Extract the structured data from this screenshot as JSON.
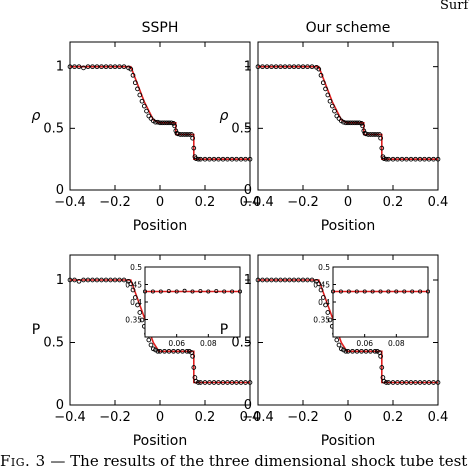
{
  "running_head": "Surf",
  "caption": {
    "label": "Fig. 3",
    "text": "— The results of the three dimensional shock tube test"
  },
  "chart_data": [
    {
      "type": "line",
      "panel": "top-left",
      "title": "SSPH",
      "xlabel": "Position",
      "ylabel": "ρ",
      "xlim": [
        -0.4,
        0.4
      ],
      "ylim": [
        0,
        1.2
      ],
      "xticks": [
        "-0.4",
        "-0.2",
        "0",
        "0.2",
        "0.4"
      ],
      "yticks": [
        "0",
        "0.5",
        "1"
      ],
      "series": [
        {
          "kind": "line",
          "color": "#e02020",
          "x": [
            -0.4,
            -0.13,
            -0.07,
            -0.03,
            -0.005,
            0.07,
            0.07,
            0.15,
            0.15,
            0.4
          ],
          "y": [
            1.0,
            1.0,
            0.715,
            0.57,
            0.545,
            0.545,
            0.45,
            0.45,
            0.25,
            0.25
          ]
        },
        {
          "kind": "markers",
          "color": "#000000",
          "x": [
            -0.4,
            -0.38,
            -0.36,
            -0.34,
            -0.32,
            -0.3,
            -0.28,
            -0.26,
            -0.24,
            -0.22,
            -0.2,
            -0.18,
            -0.16,
            -0.14,
            -0.13,
            -0.12,
            -0.11,
            -0.1,
            -0.09,
            -0.08,
            -0.07,
            -0.06,
            -0.05,
            -0.04,
            -0.03,
            -0.02,
            -0.01,
            0.0,
            0.01,
            0.02,
            0.03,
            0.04,
            0.05,
            0.06,
            0.065,
            0.07,
            0.075,
            0.08,
            0.09,
            0.1,
            0.11,
            0.12,
            0.13,
            0.14,
            0.145,
            0.15,
            0.155,
            0.16,
            0.17,
            0.18,
            0.2,
            0.22,
            0.24,
            0.26,
            0.28,
            0.3,
            0.32,
            0.34,
            0.36,
            0.38,
            0.4
          ],
          "y": [
            1.0,
            1.0,
            1.0,
            0.99,
            1.0,
            1.0,
            1.0,
            1.0,
            1.0,
            1.0,
            1.0,
            1.0,
            1.0,
            0.99,
            0.98,
            0.93,
            0.87,
            0.82,
            0.77,
            0.72,
            0.68,
            0.64,
            0.6,
            0.58,
            0.56,
            0.55,
            0.55,
            0.545,
            0.545,
            0.545,
            0.545,
            0.545,
            0.545,
            0.54,
            0.52,
            0.48,
            0.46,
            0.455,
            0.45,
            0.45,
            0.45,
            0.45,
            0.45,
            0.45,
            0.42,
            0.34,
            0.27,
            0.255,
            0.25,
            0.25,
            0.25,
            0.25,
            0.25,
            0.25,
            0.25,
            0.25,
            0.25,
            0.25,
            0.25,
            0.25,
            0.25
          ]
        }
      ]
    },
    {
      "type": "line",
      "panel": "top-right",
      "title": "Our scheme",
      "xlabel": "Position",
      "ylabel": "ρ",
      "xlim": [
        -0.4,
        0.4
      ],
      "ylim": [
        0,
        1.2
      ],
      "xticks": [
        "-0.4",
        "-0.2",
        "0",
        "0.2",
        "0.4"
      ],
      "yticks": [
        "0",
        "0.5",
        "1"
      ],
      "series": [
        {
          "kind": "line",
          "color": "#e02020",
          "x": [
            -0.4,
            -0.13,
            -0.07,
            -0.03,
            -0.005,
            0.07,
            0.07,
            0.15,
            0.15,
            0.4
          ],
          "y": [
            1.0,
            1.0,
            0.715,
            0.57,
            0.545,
            0.545,
            0.45,
            0.45,
            0.25,
            0.25
          ]
        },
        {
          "kind": "markers",
          "color": "#000000",
          "x": [
            -0.4,
            -0.38,
            -0.36,
            -0.34,
            -0.32,
            -0.3,
            -0.28,
            -0.26,
            -0.24,
            -0.22,
            -0.2,
            -0.18,
            -0.16,
            -0.14,
            -0.13,
            -0.12,
            -0.11,
            -0.1,
            -0.09,
            -0.08,
            -0.07,
            -0.06,
            -0.05,
            -0.04,
            -0.03,
            -0.02,
            -0.01,
            0.0,
            0.01,
            0.02,
            0.03,
            0.04,
            0.05,
            0.06,
            0.065,
            0.07,
            0.075,
            0.08,
            0.09,
            0.1,
            0.11,
            0.12,
            0.13,
            0.14,
            0.145,
            0.15,
            0.155,
            0.16,
            0.17,
            0.18,
            0.2,
            0.22,
            0.24,
            0.26,
            0.28,
            0.3,
            0.32,
            0.34,
            0.36,
            0.38,
            0.4
          ],
          "y": [
            1.0,
            1.0,
            1.0,
            1.0,
            1.0,
            1.0,
            1.0,
            1.0,
            1.0,
            1.0,
            1.0,
            1.0,
            1.0,
            0.995,
            0.98,
            0.93,
            0.87,
            0.82,
            0.77,
            0.72,
            0.68,
            0.64,
            0.6,
            0.58,
            0.56,
            0.55,
            0.545,
            0.545,
            0.545,
            0.545,
            0.545,
            0.545,
            0.545,
            0.54,
            0.52,
            0.48,
            0.46,
            0.455,
            0.45,
            0.45,
            0.45,
            0.45,
            0.45,
            0.45,
            0.42,
            0.34,
            0.27,
            0.255,
            0.25,
            0.25,
            0.25,
            0.25,
            0.25,
            0.25,
            0.25,
            0.25,
            0.25,
            0.25,
            0.25,
            0.25,
            0.25
          ]
        }
      ]
    },
    {
      "type": "line",
      "panel": "bottom-left",
      "title": "",
      "xlabel": "Position",
      "ylabel": "P",
      "xlim": [
        -0.4,
        0.4
      ],
      "ylim": [
        0,
        1.2
      ],
      "xticks": [
        "-0.4",
        "-0.2",
        "0",
        "0.2",
        "0.4"
      ],
      "yticks": [
        "0",
        "0.5",
        "1"
      ],
      "series": [
        {
          "kind": "line",
          "color": "#e02020",
          "x": [
            -0.4,
            -0.13,
            -0.07,
            -0.03,
            -0.005,
            0.15,
            0.15,
            0.4
          ],
          "y": [
            1.0,
            1.0,
            0.7,
            0.5,
            0.43,
            0.43,
            0.18,
            0.18
          ]
        },
        {
          "kind": "markers",
          "color": "#000000",
          "x": [
            -0.4,
            -0.38,
            -0.36,
            -0.34,
            -0.32,
            -0.3,
            -0.28,
            -0.26,
            -0.24,
            -0.22,
            -0.2,
            -0.18,
            -0.16,
            -0.14,
            -0.13,
            -0.12,
            -0.11,
            -0.1,
            -0.09,
            -0.08,
            -0.07,
            -0.06,
            -0.05,
            -0.04,
            -0.03,
            -0.02,
            -0.01,
            0.0,
            0.02,
            0.04,
            0.06,
            0.08,
            0.1,
            0.12,
            0.13,
            0.14,
            0.145,
            0.15,
            0.155,
            0.16,
            0.17,
            0.18,
            0.2,
            0.22,
            0.24,
            0.26,
            0.28,
            0.3,
            0.32,
            0.34,
            0.36,
            0.38,
            0.4
          ],
          "y": [
            1.0,
            1.0,
            0.99,
            1.0,
            1.0,
            1.0,
            1.0,
            1.0,
            1.0,
            1.0,
            1.0,
            1.0,
            1.0,
            0.99,
            0.97,
            0.92,
            0.86,
            0.8,
            0.74,
            0.68,
            0.63,
            0.57,
            0.52,
            0.48,
            0.45,
            0.44,
            0.43,
            0.43,
            0.43,
            0.43,
            0.43,
            0.43,
            0.43,
            0.43,
            0.43,
            0.42,
            0.39,
            0.3,
            0.22,
            0.19,
            0.18,
            0.18,
            0.18,
            0.18,
            0.18,
            0.18,
            0.18,
            0.18,
            0.18,
            0.18,
            0.18,
            0.18,
            0.18
          ]
        }
      ],
      "inset": {
        "xlim": [
          0.04,
          0.1
        ],
        "ylim": [
          0.3,
          0.5
        ],
        "xticks": [
          "0.06",
          "0.08"
        ],
        "yticks": [
          "0.35",
          "0.4",
          "0.45",
          "0.5"
        ],
        "line_y": 0.43,
        "markers": {
          "x": [
            0.04,
            0.045,
            0.05,
            0.055,
            0.06,
            0.065,
            0.07,
            0.075,
            0.08,
            0.085,
            0.09,
            0.095,
            0.1
          ],
          "y": [
            0.43,
            0.43,
            0.43,
            0.431,
            0.43,
            0.432,
            0.43,
            0.431,
            0.43,
            0.431,
            0.43,
            0.43,
            0.43
          ]
        }
      }
    },
    {
      "type": "line",
      "panel": "bottom-right",
      "title": "",
      "xlabel": "Position",
      "ylabel": "P",
      "xlim": [
        -0.4,
        0.4
      ],
      "ylim": [
        0,
        1.2
      ],
      "xticks": [
        "-0.4",
        "-0.2",
        "0",
        "0.2",
        "0.4"
      ],
      "yticks": [
        "0",
        "0.5",
        "1"
      ],
      "series": [
        {
          "kind": "line",
          "color": "#e02020",
          "x": [
            -0.4,
            -0.13,
            -0.07,
            -0.03,
            -0.005,
            0.15,
            0.15,
            0.4
          ],
          "y": [
            1.0,
            1.0,
            0.7,
            0.5,
            0.43,
            0.43,
            0.18,
            0.18
          ]
        },
        {
          "kind": "markers",
          "color": "#000000",
          "x": [
            -0.4,
            -0.38,
            -0.36,
            -0.34,
            -0.32,
            -0.3,
            -0.28,
            -0.26,
            -0.24,
            -0.22,
            -0.2,
            -0.18,
            -0.16,
            -0.14,
            -0.13,
            -0.12,
            -0.11,
            -0.1,
            -0.09,
            -0.08,
            -0.07,
            -0.06,
            -0.05,
            -0.04,
            -0.03,
            -0.02,
            -0.01,
            0.0,
            0.02,
            0.04,
            0.06,
            0.08,
            0.1,
            0.12,
            0.13,
            0.14,
            0.145,
            0.15,
            0.155,
            0.16,
            0.17,
            0.18,
            0.2,
            0.22,
            0.24,
            0.26,
            0.28,
            0.3,
            0.32,
            0.34,
            0.36,
            0.38,
            0.4
          ],
          "y": [
            1.0,
            1.0,
            1.0,
            1.0,
            1.0,
            1.0,
            1.0,
            1.0,
            1.0,
            1.0,
            1.0,
            1.0,
            1.0,
            0.99,
            0.97,
            0.92,
            0.86,
            0.8,
            0.74,
            0.68,
            0.63,
            0.57,
            0.52,
            0.48,
            0.45,
            0.44,
            0.43,
            0.43,
            0.43,
            0.43,
            0.43,
            0.43,
            0.43,
            0.43,
            0.43,
            0.42,
            0.39,
            0.3,
            0.22,
            0.19,
            0.18,
            0.18,
            0.18,
            0.18,
            0.18,
            0.18,
            0.18,
            0.18,
            0.18,
            0.18,
            0.18,
            0.18,
            0.18
          ]
        }
      ],
      "inset": {
        "xlim": [
          0.04,
          0.1
        ],
        "ylim": [
          0.3,
          0.5
        ],
        "xticks": [
          "0.06",
          "0.08"
        ],
        "yticks": [
          "0.35",
          "0.4",
          "0.45",
          "0.5"
        ],
        "line_y": 0.43,
        "markers": {
          "x": [
            0.04,
            0.045,
            0.05,
            0.055,
            0.06,
            0.065,
            0.07,
            0.075,
            0.08,
            0.085,
            0.09,
            0.095,
            0.1
          ],
          "y": [
            0.43,
            0.43,
            0.43,
            0.43,
            0.43,
            0.43,
            0.43,
            0.43,
            0.43,
            0.43,
            0.43,
            0.43,
            0.43
          ]
        }
      }
    }
  ]
}
